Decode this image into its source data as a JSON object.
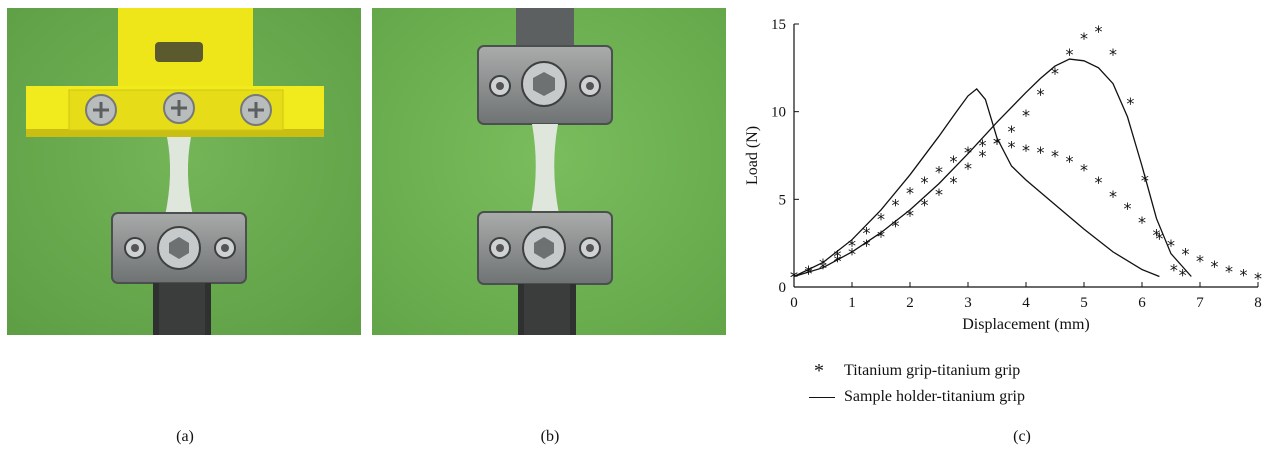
{
  "figure": {
    "panel_labels": [
      "(a)",
      "(b)",
      "(c)"
    ],
    "photo_a": {
      "icon": "yellow-sample-holder-with-three-screws-photo"
    },
    "photo_b": {
      "icon": "titanium-grips-photo"
    },
    "colors": {
      "background_green": "#6aae4e",
      "sample_holder_yellow": "#f1ea1c",
      "titanium_grey": "#8a8d8d"
    }
  },
  "chart_data": {
    "type": "scatter",
    "xlabel": "Displacement (mm)",
    "ylabel": "Load (N)",
    "xlim": [
      0,
      8
    ],
    "ylim": [
      0,
      15
    ],
    "xticks": [
      "0",
      "1",
      "2",
      "3",
      "4",
      "5",
      "6",
      "7",
      "8"
    ],
    "yticks": [
      "0",
      "5",
      "10",
      "15"
    ],
    "grid": false,
    "legend_position": "bottom",
    "series": [
      {
        "name": "Titanium grip-titanium grip",
        "style": "markers",
        "marker": "asterisk",
        "curves": [
          [
            [
              0,
              0.6
            ],
            [
              0.25,
              0.8
            ],
            [
              0.5,
              1.1
            ],
            [
              0.75,
              1.5
            ],
            [
              1.0,
              1.9
            ],
            [
              1.25,
              2.4
            ],
            [
              1.5,
              2.9
            ],
            [
              1.75,
              3.5
            ],
            [
              2.0,
              4.1
            ],
            [
              2.25,
              4.7
            ],
            [
              2.5,
              5.3
            ],
            [
              2.75,
              6.0
            ],
            [
              3.0,
              6.8
            ],
            [
              3.25,
              7.5
            ],
            [
              3.5,
              8.2
            ],
            [
              3.75,
              8.9
            ],
            [
              4.0,
              9.8
            ],
            [
              4.25,
              11.0
            ],
            [
              4.5,
              12.2
            ],
            [
              4.75,
              13.3
            ],
            [
              5.0,
              14.2
            ],
            [
              5.25,
              14.6
            ],
            [
              5.5,
              13.3
            ],
            [
              5.8,
              10.5
            ],
            [
              6.05,
              6.1
            ],
            [
              6.3,
              2.8
            ],
            [
              6.55,
              1.0
            ],
            [
              6.7,
              0.7
            ]
          ],
          [
            [
              0,
              0.6
            ],
            [
              0.25,
              0.9
            ],
            [
              0.5,
              1.3
            ],
            [
              0.75,
              1.8
            ],
            [
              1.0,
              2.4
            ],
            [
              1.25,
              3.1
            ],
            [
              1.5,
              3.9
            ],
            [
              1.75,
              4.7
            ],
            [
              2.0,
              5.4
            ],
            [
              2.25,
              6.0
            ],
            [
              2.5,
              6.6
            ],
            [
              2.75,
              7.2
            ],
            [
              3.0,
              7.7
            ],
            [
              3.25,
              8.1
            ],
            [
              3.5,
              8.2
            ],
            [
              3.75,
              8.0
            ],
            [
              4.0,
              7.8
            ],
            [
              4.25,
              7.7
            ],
            [
              4.5,
              7.5
            ],
            [
              4.75,
              7.2
            ],
            [
              5.0,
              6.7
            ],
            [
              5.25,
              6.0
            ],
            [
              5.5,
              5.2
            ],
            [
              5.75,
              4.5
            ],
            [
              6.0,
              3.7
            ],
            [
              6.25,
              3.0
            ],
            [
              6.5,
              2.4
            ],
            [
              6.75,
              1.9
            ],
            [
              7.0,
              1.5
            ],
            [
              7.25,
              1.2
            ],
            [
              7.5,
              0.9
            ],
            [
              7.75,
              0.7
            ],
            [
              8.0,
              0.5
            ]
          ]
        ]
      },
      {
        "name": "Sample holder-titanium grip",
        "style": "line",
        "curves": [
          [
            [
              0,
              0.6
            ],
            [
              0.5,
              1.4
            ],
            [
              1.0,
              2.7
            ],
            [
              1.5,
              4.4
            ],
            [
              2.0,
              6.4
            ],
            [
              2.5,
              8.6
            ],
            [
              2.8,
              10.0
            ],
            [
              3.0,
              10.9
            ],
            [
              3.15,
              11.3
            ],
            [
              3.3,
              10.7
            ],
            [
              3.5,
              8.5
            ],
            [
              3.75,
              6.9
            ],
            [
              4.0,
              6.1
            ],
            [
              4.5,
              4.7
            ],
            [
              5.0,
              3.3
            ],
            [
              5.5,
              2.0
            ],
            [
              6.0,
              1.0
            ],
            [
              6.3,
              0.6
            ]
          ],
          [
            [
              0,
              0.6
            ],
            [
              0.5,
              1.1
            ],
            [
              1.0,
              2.0
            ],
            [
              1.5,
              3.1
            ],
            [
              2.0,
              4.4
            ],
            [
              2.5,
              5.9
            ],
            [
              3.0,
              7.6
            ],
            [
              3.5,
              9.4
            ],
            [
              4.0,
              11.1
            ],
            [
              4.25,
              11.9
            ],
            [
              4.5,
              12.6
            ],
            [
              4.75,
              13.0
            ],
            [
              5.0,
              12.9
            ],
            [
              5.25,
              12.5
            ],
            [
              5.5,
              11.6
            ],
            [
              5.75,
              9.7
            ],
            [
              6.0,
              6.9
            ],
            [
              6.25,
              3.9
            ],
            [
              6.5,
              1.9
            ],
            [
              6.85,
              0.6
            ]
          ]
        ]
      }
    ]
  }
}
